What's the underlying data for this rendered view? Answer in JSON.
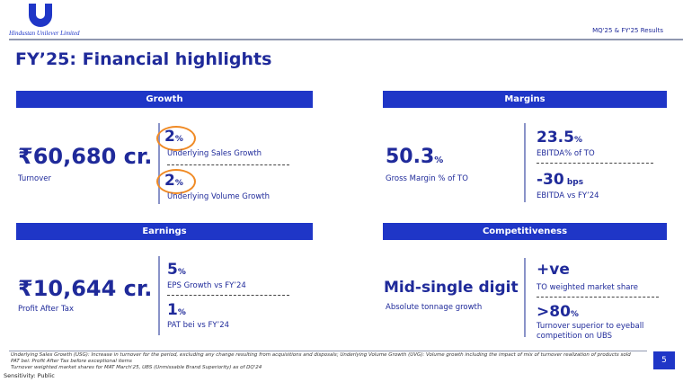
{
  "header": {
    "company": "Hindustan Unilever Limited",
    "report": "MQ'25 & FY'25 Results"
  },
  "title": "FY’25: Financial highlights",
  "growth": {
    "heading": "Growth",
    "main_value": "₹60,680 cr.",
    "main_label": "Turnover",
    "items": [
      {
        "value": "2",
        "unit": "%",
        "label": "Underlying Sales Growth"
      },
      {
        "value": "2",
        "unit": "%",
        "label": "Underlying Volume Growth"
      }
    ],
    "highlight_color": "#f08a24"
  },
  "margins": {
    "heading": "Margins",
    "main_value": "50.3",
    "main_unit": "%",
    "main_label": "Gross Margin % of TO",
    "items": [
      {
        "value": "23.5",
        "unit": "%",
        "label": "EBITDA% of TO"
      },
      {
        "value": "-30",
        "unit": " bps",
        "label": "EBITDA vs FY’24"
      }
    ]
  },
  "earnings": {
    "heading": "Earnings",
    "main_value": "₹10,644 cr.",
    "main_label": "Profit After Tax",
    "items": [
      {
        "value": "5",
        "unit": "%",
        "label": "EPS Growth vs FY’24"
      },
      {
        "value": "1",
        "unit": "%",
        "label": "PAT bei vs FY’24"
      }
    ]
  },
  "competitiveness": {
    "heading": "Competitiveness",
    "main_value": "Mid-single digit",
    "main_label": "Absolute tonnage growth",
    "items": [
      {
        "value": "+ve",
        "unit": "",
        "label": "TO weighted market share"
      },
      {
        "value": ">80",
        "unit": "%",
        "label": "Turnover superior to eyeball competition on UBS"
      }
    ]
  },
  "footnotes": [
    "Underlying Sales Growth (USG): Increase in turnover for the period, excluding any change resulting from acquisitions and disposals; Underlying Volume Growth (UVG): Volume growth including the impact of mix of turnover realization of products sold",
    "PAT bei: Profit After Tax before exceptional items",
    "Turnover weighted market shares for MAT March'25, UBS (Unmissable Brand Superiority) as of DQ'24"
  ],
  "sensitivity": "Sensitivity: Public",
  "page_number": "5",
  "colors": {
    "brand_blue": "#1f36c7",
    "text_blue": "#1f2a9a"
  }
}
